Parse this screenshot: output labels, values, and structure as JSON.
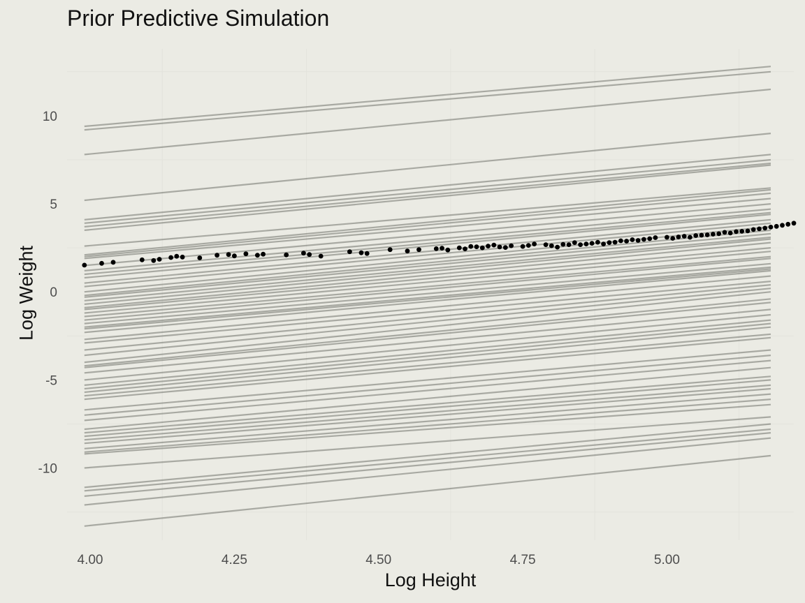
{
  "chart_data": {
    "type": "line",
    "title": "Prior Predictive Simulation",
    "xlabel": "Log Height",
    "ylabel": "Log Weight",
    "xlim": [
      3.96,
      5.22
    ],
    "ylim": [
      -14.1,
      13.8
    ],
    "x_ticks": [
      {
        "value": 4.0,
        "label": "4.00"
      },
      {
        "value": 4.25,
        "label": "4.25"
      },
      {
        "value": 4.5,
        "label": "4.50"
      },
      {
        "value": 4.75,
        "label": "4.75"
      },
      {
        "value": 5.0,
        "label": "5.00"
      }
    ],
    "y_ticks": [
      {
        "value": 10,
        "label": "10"
      },
      {
        "value": 5,
        "label": "5"
      },
      {
        "value": 0,
        "label": "0"
      },
      {
        "value": -5,
        "label": "-5"
      },
      {
        "value": -10,
        "label": "-10"
      }
    ],
    "grid": true,
    "line_x_range": [
      3.99,
      5.18
    ],
    "line_color": "#3c3f38",
    "point_color": "#000000",
    "prior_lines": [
      [
        9.4,
        12.8
      ],
      [
        9.2,
        12.5
      ],
      [
        7.8,
        11.5
      ],
      [
        5.2,
        9.0
      ],
      [
        4.1,
        7.8
      ],
      [
        3.9,
        7.5
      ],
      [
        3.7,
        7.3
      ],
      [
        3.5,
        7.2
      ],
      [
        2.6,
        5.9
      ],
      [
        2.1,
        5.8
      ],
      [
        2.0,
        5.6
      ],
      [
        1.9,
        5.3
      ],
      [
        1.5,
        5.0
      ],
      [
        1.2,
        4.7
      ],
      [
        1.0,
        4.5
      ],
      [
        0.8,
        4.4
      ],
      [
        0.5,
        4.1
      ],
      [
        0.3,
        3.9
      ],
      [
        0.0,
        3.7
      ],
      [
        -0.2,
        3.5
      ],
      [
        -0.3,
        3.3
      ],
      [
        -0.5,
        3.1
      ],
      [
        -0.7,
        3.0
      ],
      [
        -0.9,
        2.8
      ],
      [
        -1.0,
        2.5
      ],
      [
        -1.2,
        2.3
      ],
      [
        -1.4,
        2.0
      ],
      [
        -1.6,
        1.9
      ],
      [
        -1.8,
        1.6
      ],
      [
        -2.0,
        1.4
      ],
      [
        -2.1,
        1.3
      ],
      [
        -2.3,
        1.2
      ],
      [
        -2.7,
        0.9
      ],
      [
        -2.9,
        0.6
      ],
      [
        -3.3,
        0.4
      ],
      [
        -3.6,
        0.2
      ],
      [
        -4.0,
        0.0
      ],
      [
        -4.2,
        -0.4
      ],
      [
        -4.3,
        -0.6
      ],
      [
        -4.6,
        -1.0
      ],
      [
        -5.0,
        -1.3
      ],
      [
        -5.3,
        -1.6
      ],
      [
        -5.5,
        -1.8
      ],
      [
        -5.7,
        -2.0
      ],
      [
        -5.9,
        -2.4
      ],
      [
        -6.1,
        -2.6
      ],
      [
        -6.7,
        -3.3
      ],
      [
        -7.0,
        -3.6
      ],
      [
        -7.3,
        -3.9
      ],
      [
        -7.8,
        -4.3
      ],
      [
        -8.0,
        -4.8
      ],
      [
        -8.2,
        -5.0
      ],
      [
        -8.4,
        -5.3
      ],
      [
        -8.6,
        -5.5
      ],
      [
        -8.9,
        -5.8
      ],
      [
        -9.1,
        -6.1
      ],
      [
        -9.2,
        -6.4
      ],
      [
        -10.0,
        -7.1
      ],
      [
        -11.1,
        -7.5
      ],
      [
        -11.3,
        -7.8
      ],
      [
        -11.6,
        -8.0
      ],
      [
        -12.1,
        -8.3
      ],
      [
        -13.3,
        -9.3
      ]
    ],
    "observations": [
      [
        3.99,
        1.52
      ],
      [
        4.02,
        1.62
      ],
      [
        4.04,
        1.68
      ],
      [
        4.09,
        1.82
      ],
      [
        4.11,
        1.78
      ],
      [
        4.12,
        1.85
      ],
      [
        4.14,
        1.95
      ],
      [
        4.15,
        2.02
      ],
      [
        4.16,
        1.98
      ],
      [
        4.19,
        1.93
      ],
      [
        4.22,
        2.08
      ],
      [
        4.24,
        2.12
      ],
      [
        4.25,
        2.04
      ],
      [
        4.27,
        2.16
      ],
      [
        4.29,
        2.08
      ],
      [
        4.3,
        2.14
      ],
      [
        4.34,
        2.1
      ],
      [
        4.37,
        2.2
      ],
      [
        4.38,
        2.12
      ],
      [
        4.4,
        2.03
      ],
      [
        4.45,
        2.28
      ],
      [
        4.47,
        2.22
      ],
      [
        4.48,
        2.18
      ],
      [
        4.52,
        2.4
      ],
      [
        4.55,
        2.32
      ],
      [
        4.57,
        2.4
      ],
      [
        4.6,
        2.45
      ],
      [
        4.61,
        2.48
      ],
      [
        4.62,
        2.38
      ],
      [
        4.64,
        2.5
      ],
      [
        4.65,
        2.44
      ],
      [
        4.66,
        2.58
      ],
      [
        4.67,
        2.56
      ],
      [
        4.68,
        2.5
      ],
      [
        4.69,
        2.6
      ],
      [
        4.7,
        2.66
      ],
      [
        4.71,
        2.55
      ],
      [
        4.72,
        2.52
      ],
      [
        4.73,
        2.62
      ],
      [
        4.75,
        2.58
      ],
      [
        4.76,
        2.64
      ],
      [
        4.77,
        2.72
      ],
      [
        4.79,
        2.68
      ],
      [
        4.8,
        2.62
      ],
      [
        4.81,
        2.54
      ],
      [
        4.82,
        2.7
      ],
      [
        4.83,
        2.68
      ],
      [
        4.84,
        2.8
      ],
      [
        4.85,
        2.68
      ],
      [
        4.86,
        2.72
      ],
      [
        4.87,
        2.76
      ],
      [
        4.88,
        2.82
      ],
      [
        4.89,
        2.72
      ],
      [
        4.9,
        2.8
      ],
      [
        4.91,
        2.82
      ],
      [
        4.92,
        2.9
      ],
      [
        4.93,
        2.88
      ],
      [
        4.94,
        2.96
      ],
      [
        4.95,
        2.92
      ],
      [
        4.96,
        2.98
      ],
      [
        4.97,
        3.02
      ],
      [
        4.98,
        3.08
      ],
      [
        5.0,
        3.1
      ],
      [
        5.01,
        3.04
      ],
      [
        5.02,
        3.12
      ],
      [
        5.03,
        3.16
      ],
      [
        5.04,
        3.1
      ],
      [
        5.05,
        3.2
      ],
      [
        5.06,
        3.22
      ],
      [
        5.07,
        3.24
      ],
      [
        5.08,
        3.28
      ],
      [
        5.09,
        3.3
      ],
      [
        5.1,
        3.38
      ],
      [
        5.11,
        3.34
      ],
      [
        5.12,
        3.42
      ],
      [
        5.13,
        3.44
      ],
      [
        5.14,
        3.46
      ],
      [
        5.15,
        3.54
      ],
      [
        5.16,
        3.58
      ],
      [
        5.17,
        3.62
      ],
      [
        5.18,
        3.68
      ],
      [
        5.19,
        3.72
      ],
      [
        5.2,
        3.78
      ],
      [
        5.21,
        3.84
      ],
      [
        5.22,
        3.9
      ]
    ]
  }
}
